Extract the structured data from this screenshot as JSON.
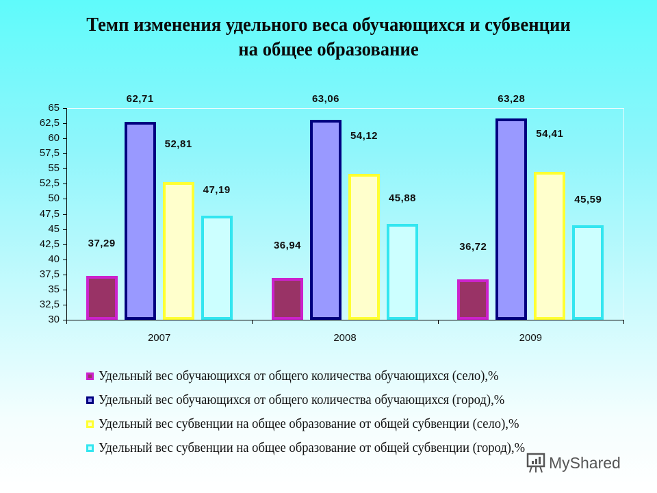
{
  "title_line1": "Темп изменения удельного веса обучающихся и субвенции",
  "title_line2": "на общее образование",
  "chart_data": {
    "type": "bar",
    "title": "Темп изменения удельного веса обучающихся и субвенции на общее образование",
    "xlabel": "",
    "ylabel": "",
    "ylim": [
      30,
      65
    ],
    "yticks": [
      "30",
      "32,5",
      "35",
      "37,5",
      "40",
      "42,5",
      "45",
      "47,5",
      "50",
      "52,5",
      "55",
      "57,5",
      "60",
      "62,5",
      "65"
    ],
    "categories": [
      "2007",
      "2008",
      "2009"
    ],
    "series": [
      {
        "name": "Удельный вес обучающихся от общего количества обучающихся (село),%",
        "values": [
          37.29,
          36.94,
          36.72
        ],
        "labels": [
          "37,29",
          "36,94",
          "36,72"
        ],
        "fill": "#993366",
        "border": "#cc22cc"
      },
      {
        "name": "Удельный вес обучающихся от общего количества обучающихся (город),%",
        "values": [
          62.71,
          63.06,
          63.28
        ],
        "labels": [
          "62,71",
          "63,06",
          "63,28"
        ],
        "fill": "#9999ff",
        "border": "#000080"
      },
      {
        "name": "Удельный вес субвенции на общее образование от общей субвенции (село),%",
        "values": [
          52.81,
          54.12,
          54.41
        ],
        "labels": [
          "52,81",
          "54,12",
          "54,41"
        ],
        "fill": "#ffffcc",
        "border": "#ffff33"
      },
      {
        "name": "Удельный вес субвенции на общее образование от общей субвенции (город),%",
        "values": [
          47.19,
          45.88,
          45.59
        ],
        "labels": [
          "47,19",
          "45,88",
          "45,59"
        ],
        "fill": "#ccffff",
        "border": "#33e6f0"
      }
    ],
    "grid": false,
    "legend_position": "bottom"
  },
  "watermark": "MyShared"
}
